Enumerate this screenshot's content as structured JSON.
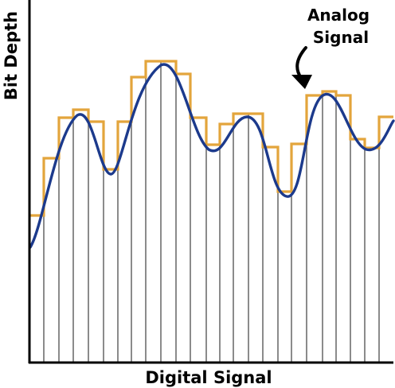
{
  "labels": {
    "x_axis": "Digital Signal",
    "y_axis": "Bit Depth",
    "annotation_line1": "Analog",
    "annotation_line2": "Signal"
  },
  "colors": {
    "analog": "#1c3a8c",
    "digital": "#e3a53c",
    "sample_lines": "#6e6e6e",
    "axes": "#000000"
  }
}
